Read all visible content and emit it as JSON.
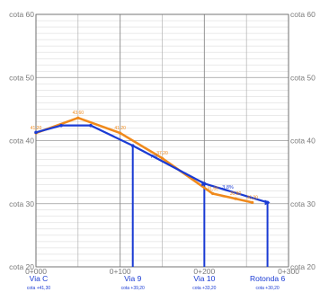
{
  "chart_data": {
    "type": "line",
    "title": "",
    "xlabel": "",
    "ylabel": "",
    "x_range": [
      0,
      300
    ],
    "y_range": [
      20,
      60
    ],
    "x_tick_values": [
      0,
      100,
      200,
      300
    ],
    "x_tick_labels": [
      "0+000",
      "0+100",
      "0+200",
      "0+300"
    ],
    "y_tick_values": [
      20,
      30,
      40,
      50,
      60
    ],
    "y_tick_labels": [
      "cota 20",
      "cota 30",
      "cota 40",
      "cota 50",
      "cota 60"
    ],
    "grid": true,
    "series": [
      {
        "color": "#f08a1c",
        "points": [
          {
            "x": 0,
            "y": 41.2,
            "label": "41,20"
          },
          {
            "x": 50,
            "y": 43.6,
            "label": "43,60"
          },
          {
            "x": 100,
            "y": 41.2,
            "label": "41,20"
          },
          {
            "x": 150,
            "y": 37.2,
            "label": "37,20"
          },
          {
            "x": 210,
            "y": 31.6,
            "label": "31,60"
          },
          {
            "x": 237,
            "y": 30.8,
            "label": "30,80"
          },
          {
            "x": 257,
            "y": 30.2,
            "label": "30,20"
          }
        ]
      },
      {
        "color": "#1a3bd4",
        "points": [
          {
            "x": 0,
            "y": 41.3
          },
          {
            "x": 30,
            "y": 42.4
          },
          {
            "x": 65,
            "y": 42.4
          },
          {
            "x": 115,
            "y": 39.2
          },
          {
            "x": 200,
            "y": 33.2
          },
          {
            "x": 275,
            "y": 30.2
          }
        ]
      }
    ],
    "slope_labels": [
      {
        "x": 140,
        "y": 37.2,
        "text": "7%"
      },
      {
        "x": 228,
        "y": 32.4,
        "text": "3,8%"
      }
    ],
    "stations": [
      {
        "x": 0,
        "name": "Via C",
        "cota": "cota +41,30"
      },
      {
        "x": 115,
        "name": "Via 9",
        "cota": "cota +39,20"
      },
      {
        "x": 200,
        "name": "Via 10",
        "cota": "cota +33,20"
      },
      {
        "x": 275,
        "name": "Rotonda 6",
        "cota": "cota +30,20"
      }
    ]
  }
}
